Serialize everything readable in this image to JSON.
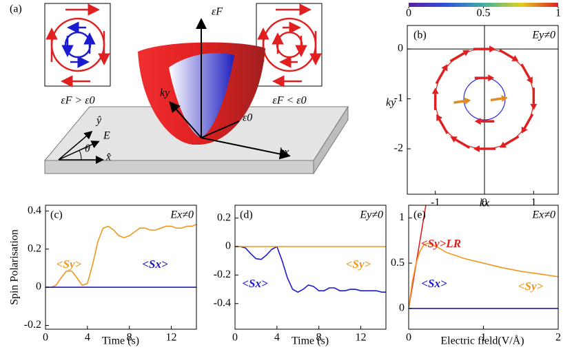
{
  "diagram": {
    "panel": "(a)",
    "eF": "εF",
    "e0": "ε0",
    "ky": "ky",
    "kx": "kx",
    "left_caption": "εF > ε0",
    "right_caption": "εF < ε0",
    "yhat": "ŷ",
    "xhat": "x̂",
    "E": "E⃗",
    "theta": "θ"
  },
  "y_label": "Spin Polarisation",
  "chart_data": [
    {
      "type": "quiver",
      "label": "(b)",
      "field": "Ey≠0",
      "x_label": "kx",
      "y_label": "ky",
      "xlim": [
        -1.57,
        1.5
      ],
      "xticks": [
        -1,
        0,
        1
      ],
      "ylim": [
        -2.91,
        0.47
      ],
      "yticks": [
        0,
        -1,
        -2
      ],
      "zero_lines": true,
      "colorbar": {
        "lim": [
          0,
          1
        ],
        "ticks": [
          0,
          0.5,
          1
        ],
        "colors": [
          "#5a1fa0",
          "#3050e0",
          "#40b0a0",
          "#e0d020",
          "#e02020"
        ]
      },
      "circles": [
        {
          "color": "#e0201b",
          "cx": 0,
          "cy": -1,
          "r": 1
        },
        {
          "color": "#2a2adf",
          "cx": 0,
          "cy": -1,
          "r": 0.42
        }
      ],
      "x": [
        0,
        0.5,
        0.866,
        1,
        0.866,
        0.5,
        0,
        -0.5,
        -0.866,
        -1,
        -0.866,
        -0.5,
        0,
        0,
        -0.45,
        0.3
      ],
      "y": [
        0,
        -0.134,
        -0.5,
        -1,
        -1.5,
        -1.866,
        -2,
        -1.866,
        -1.5,
        -1,
        -0.5,
        -0.134,
        -0.58,
        -1.45,
        -1.05,
        -1
      ],
      "u": [
        0.45,
        0.39,
        0.225,
        0,
        -0.225,
        -0.39,
        -0.45,
        -0.39,
        -0.225,
        0,
        0.225,
        0.39,
        0.4,
        -0.4,
        0.35,
        0.35
      ],
      "v": [
        0,
        -0.225,
        -0.39,
        -0.45,
        -0.39,
        -0.225,
        0,
        0.225,
        0.39,
        0.45,
        0.39,
        0.225,
        0,
        0,
        0.05,
        0.05
      ],
      "magnitude": [
        1,
        1,
        1,
        1,
        1,
        1,
        1,
        1,
        1,
        1,
        1,
        1,
        1,
        1,
        0.85,
        0.85
      ]
    },
    {
      "type": "line",
      "label": "(c)",
      "field": "Ex≠0",
      "x_label": "Time (s)",
      "xlim": [
        0,
        14.4
      ],
      "xticks": [
        0,
        4,
        8,
        12
      ],
      "ylim": [
        -0.22,
        0.43
      ],
      "yticks": [
        -0.2,
        0,
        0.2,
        0.4
      ],
      "x": [
        0,
        0.5,
        1,
        1.5,
        2,
        2.5,
        3,
        3.5,
        4,
        4.5,
        5,
        5.5,
        6,
        6.5,
        7,
        7.5,
        8,
        8.5,
        9,
        9.5,
        10,
        10.5,
        11,
        11.5,
        12,
        12.5,
        13,
        13.5,
        14,
        14.4
      ],
      "series": [
        {
          "name": "<Sy>",
          "color": "#f0961e",
          "values": [
            0,
            0,
            0.01,
            0.05,
            0.085,
            0.085,
            0.05,
            0.01,
            0.02,
            0.12,
            0.24,
            0.31,
            0.32,
            0.3,
            0.27,
            0.26,
            0.27,
            0.29,
            0.31,
            0.31,
            0.3,
            0.3,
            0.31,
            0.32,
            0.32,
            0.31,
            0.31,
            0.32,
            0.32,
            0.33
          ]
        },
        {
          "name": "<Sx>",
          "color": "#1a1ab0",
          "values": [
            0,
            0,
            0,
            0,
            0,
            0,
            0,
            0,
            0,
            0,
            0,
            0,
            0,
            0,
            0,
            0,
            0,
            0,
            0,
            0,
            0,
            0,
            0,
            0,
            0,
            0,
            0,
            0,
            0,
            0
          ]
        }
      ]
    },
    {
      "type": "line",
      "label": "(d)",
      "field": "Ey≠0",
      "x_label": "Time (s)",
      "xlim": [
        0,
        14.4
      ],
      "xticks": [
        0,
        4,
        8,
        12
      ],
      "ylim": [
        -0.58,
        0.29
      ],
      "yticks": [
        0.2,
        0,
        -0.2,
        -0.4
      ],
      "x": [
        0,
        0.5,
        1,
        1.5,
        2,
        2.5,
        3,
        3.5,
        4,
        4.5,
        5,
        5.5,
        6,
        6.5,
        7,
        7.5,
        8,
        8.5,
        9,
        9.5,
        10,
        10.5,
        11,
        11.5,
        12,
        12.5,
        13,
        13.5,
        14,
        14.4
      ],
      "series": [
        {
          "name": "<Sx>",
          "color": "#1a1ad0",
          "values": [
            0,
            0,
            -0.01,
            -0.05,
            -0.085,
            -0.09,
            -0.06,
            -0.02,
            0,
            -0.1,
            -0.22,
            -0.3,
            -0.32,
            -0.3,
            -0.27,
            -0.28,
            -0.31,
            -0.31,
            -0.29,
            -0.29,
            -0.31,
            -0.31,
            -0.3,
            -0.3,
            -0.31,
            -0.31,
            -0.31,
            -0.31,
            -0.32,
            -0.32
          ]
        },
        {
          "name": "<Sy>",
          "color": "#f0961e",
          "values": [
            0,
            0,
            0,
            0,
            0,
            0,
            0,
            0,
            0,
            0,
            0,
            0,
            0,
            0,
            0,
            0,
            0,
            0,
            0,
            0,
            0,
            0,
            0,
            0,
            0,
            0,
            0,
            0,
            0,
            0
          ]
        }
      ]
    },
    {
      "type": "line",
      "label": "(e)",
      "field": "Ex≠0",
      "x_label": "Electric field(V/Å)",
      "xlim": [
        0,
        2
      ],
      "xticks": [
        0,
        1,
        2
      ],
      "ylim": [
        -0.23,
        1.14
      ],
      "yticks": [
        0,
        0.5,
        1
      ],
      "x": [
        0,
        0.05,
        0.1,
        0.15,
        0.2,
        0.25,
        0.3,
        0.4,
        0.5,
        0.75,
        1,
        1.25,
        1.5,
        1.75,
        2
      ],
      "series": [
        {
          "name": "<Sy>LR",
          "color": "#e02020",
          "x": [
            0,
            0.23
          ],
          "values": [
            0,
            1.14
          ]
        },
        {
          "name": "<Sx>",
          "color": "#1a1ad0",
          "values": [
            0,
            0,
            0,
            0,
            0,
            0,
            0,
            0,
            0,
            0,
            0,
            0,
            0,
            0,
            0
          ]
        },
        {
          "name": "<Sy>",
          "color": "#f0961e",
          "values": [
            0,
            0.3,
            0.5,
            0.63,
            0.7,
            0.72,
            0.71,
            0.67,
            0.62,
            0.55,
            0.5,
            0.45,
            0.41,
            0.38,
            0.35
          ]
        }
      ]
    }
  ]
}
